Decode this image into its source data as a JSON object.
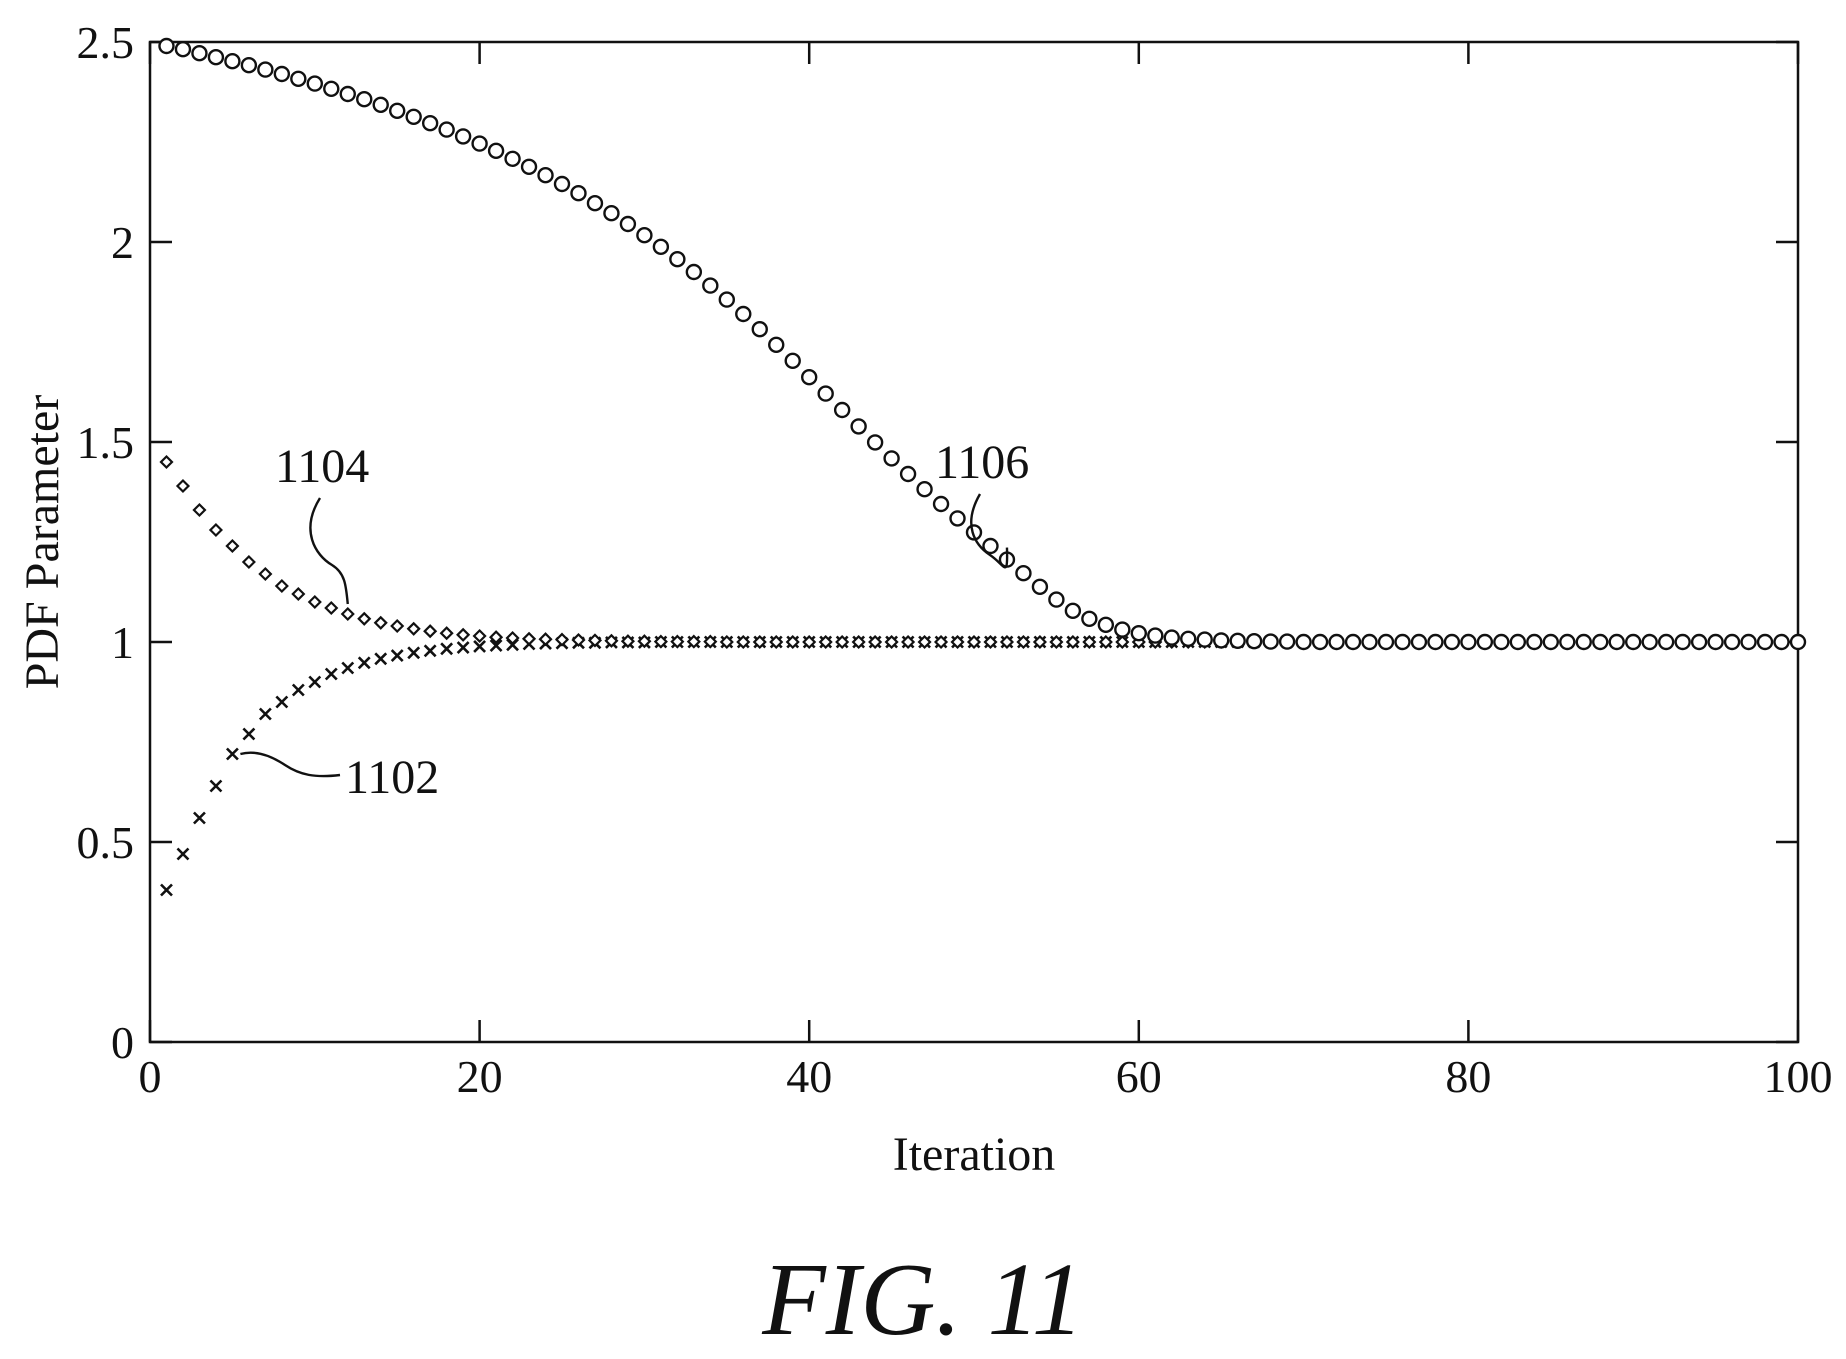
{
  "figure_caption": "FIG. 11",
  "chart_data": {
    "type": "scatter",
    "title": "",
    "xlabel": "Iteration",
    "ylabel": "PDF Parameter",
    "xlim": [
      0,
      100
    ],
    "ylim": [
      0,
      2.5
    ],
    "xticks": [
      "0",
      "20",
      "40",
      "60",
      "80",
      "100"
    ],
    "yticks": [
      "0",
      "0.5",
      "1",
      "1.5",
      "2",
      "2.5"
    ],
    "grid": false,
    "legend": "none",
    "x": [
      1,
      2,
      3,
      4,
      5,
      6,
      7,
      8,
      9,
      10,
      11,
      12,
      13,
      14,
      15,
      16,
      17,
      18,
      19,
      20,
      21,
      22,
      23,
      24,
      25,
      26,
      27,
      28,
      29,
      30,
      31,
      32,
      33,
      34,
      35,
      36,
      37,
      38,
      39,
      40,
      41,
      42,
      43,
      44,
      45,
      46,
      47,
      48,
      49,
      50,
      51,
      52,
      53,
      54,
      55,
      56,
      57,
      58,
      59,
      60,
      61,
      62,
      63,
      64,
      65,
      66,
      67,
      68,
      69,
      70,
      71,
      72,
      73,
      74,
      75,
      76,
      77,
      78,
      79,
      80,
      81,
      82,
      83,
      84,
      85,
      86,
      87,
      88,
      89,
      90,
      91,
      92,
      93,
      94,
      95,
      96,
      97,
      98,
      99,
      100
    ],
    "series": [
      {
        "marker": "x",
        "callout": "1102",
        "values": [
          0.38,
          0.47,
          0.56,
          0.64,
          0.72,
          0.77,
          0.82,
          0.85,
          0.88,
          0.9,
          0.92,
          0.935,
          0.948,
          0.958,
          0.966,
          0.973,
          0.978,
          0.983,
          0.986,
          0.989,
          0.991,
          0.993,
          0.995,
          0.996,
          0.997,
          0.998,
          0.998,
          0.999,
          0.999,
          0.999,
          1,
          1,
          1,
          1,
          1,
          1,
          1,
          1,
          1,
          1,
          1,
          1,
          1,
          1,
          1,
          1,
          1,
          1,
          1,
          1,
          1,
          1,
          1,
          1,
          1,
          1,
          1,
          1,
          1,
          1,
          1,
          1,
          1,
          1,
          1,
          1,
          1,
          1,
          1,
          1,
          1,
          1,
          1,
          1,
          1,
          1,
          1,
          1,
          1,
          1,
          1,
          1,
          1,
          1,
          1,
          1,
          1,
          1,
          1,
          1,
          1,
          1,
          1,
          1,
          1,
          1,
          1,
          1,
          1,
          1
        ]
      },
      {
        "marker": "diamond",
        "callout": "1104",
        "values": [
          1.45,
          1.39,
          1.33,
          1.28,
          1.24,
          1.2,
          1.17,
          1.14,
          1.12,
          1.1,
          1.085,
          1.07,
          1.058,
          1.048,
          1.04,
          1.033,
          1.027,
          1.022,
          1.018,
          1.015,
          1.012,
          1.01,
          1.008,
          1.007,
          1.006,
          1.005,
          1.004,
          1.003,
          1.002,
          1.002,
          1.001,
          1.001,
          1.001,
          1.001,
          1,
          1,
          1,
          1,
          1,
          1,
          1,
          1,
          1,
          1,
          1,
          1,
          1,
          1,
          1,
          1,
          1,
          1,
          1,
          1,
          1,
          1,
          1,
          1,
          1,
          1,
          1,
          1,
          1,
          1,
          1,
          1,
          1,
          1,
          1,
          1,
          1,
          1,
          1,
          1,
          1,
          1,
          1,
          1,
          1,
          1,
          1,
          1,
          1,
          1,
          1,
          1,
          1,
          1,
          1,
          1,
          1,
          1,
          1,
          1,
          1,
          1,
          1,
          1,
          1,
          1
        ]
      },
      {
        "marker": "circle",
        "callout": "1106",
        "values": [
          2.49,
          2.482,
          2.472,
          2.462,
          2.452,
          2.442,
          2.431,
          2.42,
          2.408,
          2.396,
          2.383,
          2.37,
          2.357,
          2.343,
          2.328,
          2.313,
          2.297,
          2.281,
          2.264,
          2.246,
          2.228,
          2.208,
          2.188,
          2.167,
          2.145,
          2.122,
          2.097,
          2.072,
          2.045,
          2.017,
          1.988,
          1.957,
          1.925,
          1.891,
          1.856,
          1.82,
          1.782,
          1.743,
          1.703,
          1.662,
          1.621,
          1.58,
          1.539,
          1.499,
          1.459,
          1.42,
          1.382,
          1.345,
          1.309,
          1.274,
          1.24,
          1.206,
          1.172,
          1.138,
          1.106,
          1.078,
          1.058,
          1.043,
          1.031,
          1.022,
          1.016,
          1.011,
          1.008,
          1.006,
          1.004,
          1.003,
          1.002,
          1.001,
          1.001,
          1,
          1,
          1,
          1,
          1,
          1,
          1,
          1,
          1,
          1,
          1,
          1,
          1,
          1,
          1,
          1,
          1,
          1,
          1,
          1,
          1,
          1,
          1,
          1,
          1,
          1,
          1,
          1,
          1,
          1,
          1
        ]
      }
    ]
  }
}
